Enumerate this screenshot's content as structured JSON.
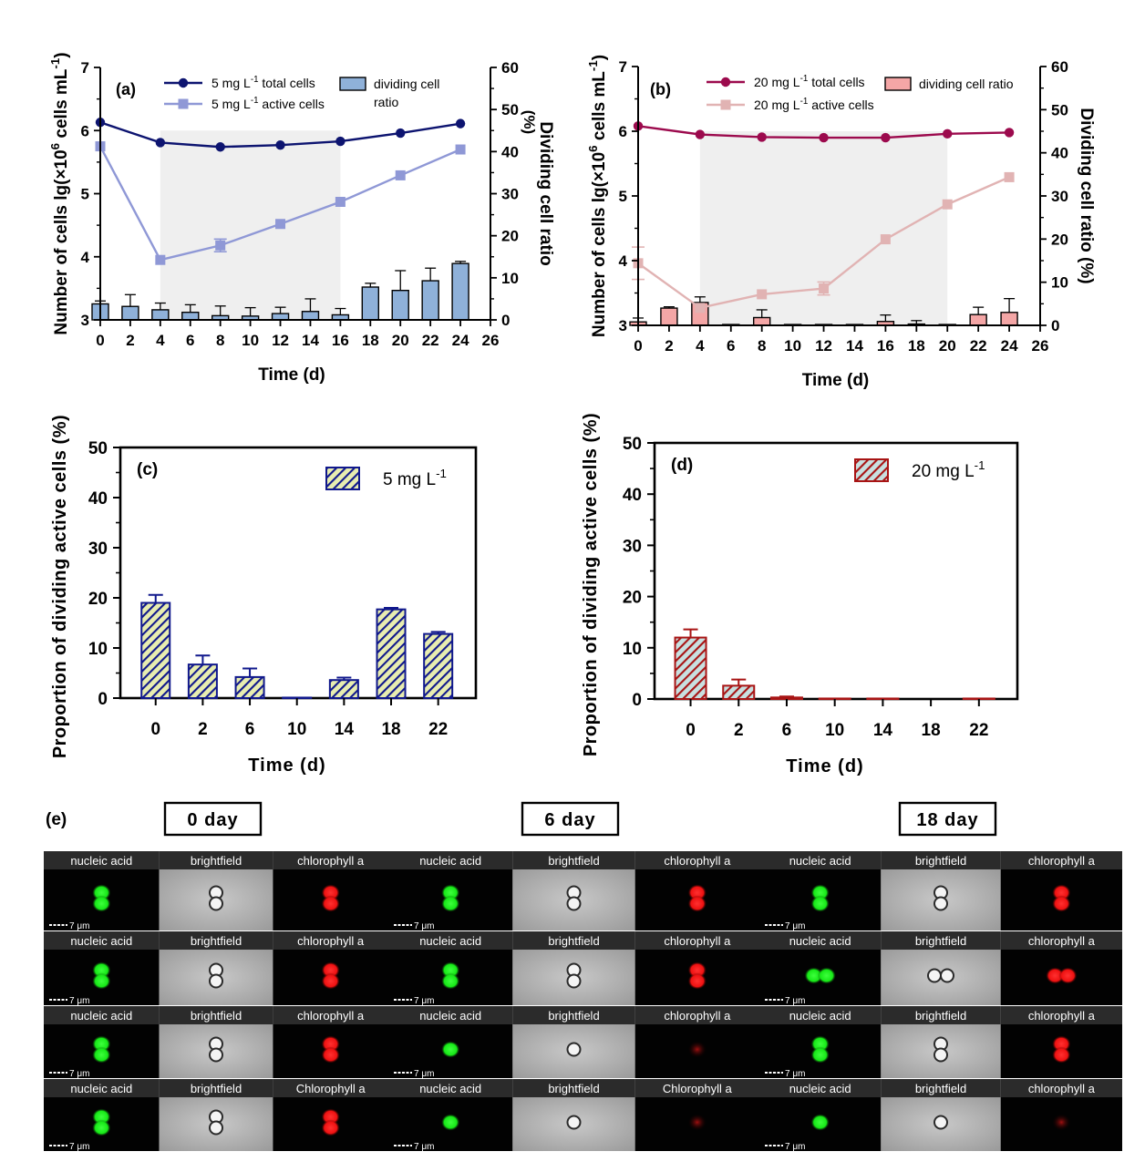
{
  "colors": {
    "a_total": "#0d1470",
    "a_active": "#8f98d6",
    "a_bar": "#8fb1d9",
    "b_total": "#9c0a4d",
    "b_active": "#e1b3b3",
    "b_bar": "#f4a6a6",
    "c_bar": "#10188c",
    "d_bar": "#a81414",
    "shade": "#efefef",
    "green": "#17e817",
    "red": "#ee1111"
  },
  "chart_data": [
    {
      "id": "a",
      "type": "line+bar",
      "panel_label": "(a)",
      "xlabel": "Time (d)",
      "ylabel_parts": [
        "Number of cells lg(×10",
        "6",
        " cells mL",
        "-1",
        ")"
      ],
      "y2label": "Dividing cell ratio",
      "y2label_extra": "(%)",
      "xlim": [
        0,
        26
      ],
      "xticks": [
        0,
        2,
        4,
        6,
        8,
        10,
        12,
        14,
        16,
        18,
        20,
        22,
        24,
        26
      ],
      "ylim": [
        3,
        7
      ],
      "yticks": [
        3,
        4,
        5,
        6,
        7
      ],
      "y2lim": [
        0,
        60
      ],
      "y2ticks": [
        0,
        10,
        20,
        30,
        40,
        50,
        60
      ],
      "shaded_x": [
        4,
        16
      ],
      "x": [
        0,
        2,
        4,
        6,
        8,
        10,
        12,
        14,
        16,
        18,
        20,
        22,
        24
      ],
      "series": [
        {
          "name": "5 mg L-1 total cells",
          "legend": [
            "5 mg L",
            "-1",
            " total cells"
          ],
          "axis": "left",
          "marker": "circle",
          "x": [
            0,
            4,
            8,
            12,
            16,
            20,
            24
          ],
          "values": [
            6.13,
            5.81,
            5.74,
            5.77,
            5.83,
            5.96,
            6.11
          ],
          "errors": [
            0,
            0,
            0,
            0,
            0,
            0,
            0
          ]
        },
        {
          "name": "5 mg L-1 active cells",
          "legend": [
            "5 mg L",
            "-1",
            " active cells"
          ],
          "axis": "left",
          "marker": "square",
          "x": [
            0,
            4,
            8,
            12,
            16,
            20,
            24
          ],
          "values": [
            5.75,
            3.95,
            4.18,
            4.52,
            4.87,
            5.29,
            5.7
          ],
          "errors": [
            0,
            0,
            0.1,
            0,
            0,
            0,
            0
          ]
        },
        {
          "name": "dividing cell ratio",
          "legend": [
            "dividing cell",
            "ratio"
          ],
          "axis": "right",
          "marker": "bar",
          "x": [
            0,
            2,
            4,
            6,
            8,
            10,
            12,
            14,
            16,
            18,
            20,
            22,
            24
          ],
          "values": [
            3.8,
            3.2,
            2.4,
            1.8,
            1.0,
            0.9,
            1.5,
            2.0,
            1.2,
            7.8,
            7.0,
            9.3,
            13.4
          ],
          "errors": [
            0.7,
            2.8,
            1.6,
            1.8,
            2.3,
            2.0,
            1.5,
            3.0,
            1.5,
            0.9,
            4.7,
            3.0,
            0.5
          ]
        }
      ]
    },
    {
      "id": "b",
      "type": "line+bar",
      "panel_label": "(b)",
      "xlabel": "Time (d)",
      "ylabel_parts": [
        "Number of cells lg(×10",
        "6",
        " cells mL",
        "-1",
        ")"
      ],
      "y2label": "Dividing cell ratio (%)",
      "xlim": [
        0,
        26
      ],
      "xticks": [
        0,
        2,
        4,
        6,
        8,
        10,
        12,
        14,
        16,
        18,
        20,
        22,
        24,
        26
      ],
      "ylim": [
        3,
        7
      ],
      "yticks": [
        3,
        4,
        5,
        6,
        7
      ],
      "y2lim": [
        0,
        60
      ],
      "y2ticks": [
        0,
        10,
        20,
        30,
        40,
        50,
        60
      ],
      "shaded_x": [
        4,
        20
      ],
      "series": [
        {
          "name": "20 mg L-1 total cells",
          "legend": [
            "20 mg L",
            "-1",
            " total cells"
          ],
          "axis": "left",
          "marker": "circle",
          "x": [
            0,
            4,
            8,
            12,
            16,
            20,
            24
          ],
          "values": [
            6.08,
            5.95,
            5.91,
            5.9,
            5.9,
            5.96,
            5.98
          ],
          "errors": [
            0,
            0,
            0,
            0,
            0,
            0,
            0
          ]
        },
        {
          "name": "20 mg L-1 active cells",
          "legend": [
            "20 mg L",
            "-1",
            " active cells"
          ],
          "axis": "left",
          "marker": "square",
          "x": [
            0,
            4,
            8,
            12,
            16,
            20,
            24
          ],
          "values": [
            3.96,
            3.27,
            3.48,
            3.57,
            4.33,
            4.87,
            5.29
          ],
          "errors": [
            0.25,
            0,
            0,
            0.1,
            0,
            0,
            0
          ]
        },
        {
          "name": "dividing cell ratio",
          "legend": [
            "dividing cell ratio"
          ],
          "axis": "right",
          "marker": "bar",
          "x": [
            0,
            2,
            4,
            6,
            8,
            10,
            12,
            14,
            16,
            18,
            20,
            22,
            24
          ],
          "values": [
            0.8,
            4.0,
            5.3,
            0.2,
            1.8,
            0.2,
            0.2,
            0.2,
            0.9,
            0.3,
            0.2,
            2.5,
            3.0
          ],
          "errors": [
            0.9,
            0.3,
            1.3,
            0,
            1.8,
            0,
            0,
            0,
            1.5,
            0.8,
            0,
            1.7,
            3.2
          ]
        }
      ]
    },
    {
      "id": "c",
      "type": "bar",
      "panel_label": "(c)",
      "xlabel": "Time (d)",
      "ylabel": "Proportion of dividing active cells (%)",
      "ylim": [
        0,
        50
      ],
      "yticks": [
        0,
        10,
        20,
        30,
        40,
        50
      ],
      "categories": [
        "0",
        "2",
        "6",
        "10",
        "14",
        "18",
        "22"
      ],
      "series": [
        {
          "name": "5 mg L-1",
          "legend": [
            "5 mg L",
            "-1"
          ],
          "values": [
            19.0,
            6.7,
            4.2,
            0.1,
            3.6,
            17.7,
            12.8
          ],
          "errors": [
            1.6,
            1.8,
            1.7,
            0,
            0.5,
            0.3,
            0.4
          ]
        }
      ]
    },
    {
      "id": "d",
      "type": "bar",
      "panel_label": "(d)",
      "xlabel": "Time (d)",
      "ylabel": "Proportion of dividing active cells (%)",
      "ylim": [
        0,
        50
      ],
      "yticks": [
        0,
        10,
        20,
        30,
        40,
        50
      ],
      "categories": [
        "0",
        "2",
        "6",
        "10",
        "14",
        "18",
        "22"
      ],
      "series": [
        {
          "name": "20 mg L-1",
          "legend": [
            "20 mg L",
            "-1"
          ],
          "values": [
            12.0,
            2.6,
            0.3,
            0.1,
            0.1,
            0,
            0.1
          ],
          "errors": [
            1.6,
            1.2,
            0.2,
            0,
            0,
            0,
            0
          ]
        }
      ]
    }
  ],
  "panel_e": {
    "label": "(e)",
    "scale_bar": "7 μm",
    "groups": [
      {
        "title": "0 day",
        "rows": [
          [
            "nucleic acid",
            "brightfield",
            "chlorophyll a"
          ],
          [
            "nucleic acid",
            "brightfield",
            "chlorophyll a"
          ],
          [
            "nucleic acid",
            "brightfield",
            "chlorophyll a"
          ],
          [
            "nucleic acid",
            "brightfield",
            "Chlorophyll a"
          ]
        ]
      },
      {
        "title": "6 day",
        "rows": [
          [
            "nucleic acid",
            "brightfield",
            "chlorophyll a"
          ],
          [
            "nucleic acid",
            "brightfield",
            "chlorophyll a"
          ],
          [
            "nucleic acid",
            "brightfield",
            "chlorophyll a"
          ],
          [
            "nucleic acid",
            "brightfield",
            "Chlorophyll a"
          ]
        ]
      },
      {
        "title": "18 day",
        "rows": [
          [
            "nucleic acid",
            "brightfield",
            "chlorophyll a"
          ],
          [
            "nucleic acid",
            "brightfield",
            "chlorophyll a"
          ],
          [
            "nucleic acid",
            "brightfield",
            "chlorophyll a"
          ],
          [
            "nucleic acid",
            "brightfield",
            "chlorophyll a"
          ]
        ]
      }
    ]
  }
}
